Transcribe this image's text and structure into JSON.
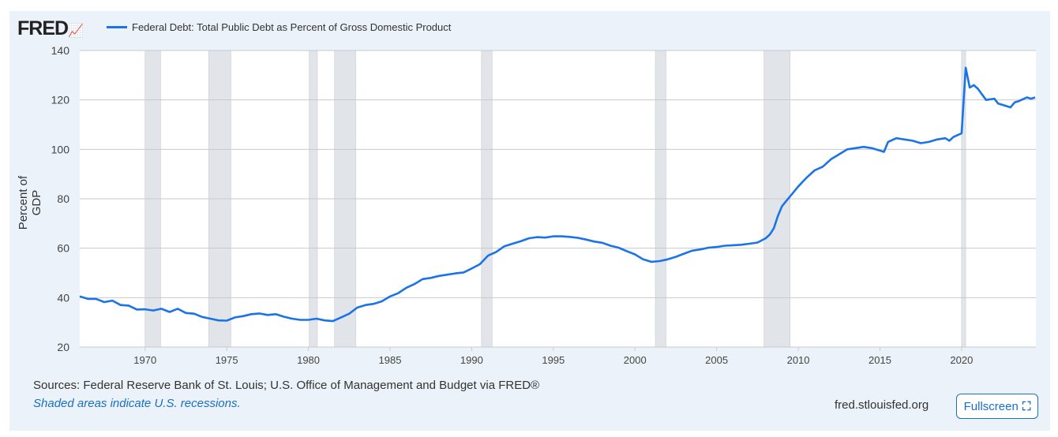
{
  "logo": "FRED",
  "chart_data": {
    "type": "line",
    "title": "Federal Debt: Total Public Debt as Percent of Gross Domestic Product",
    "xlabel": "",
    "ylabel": "Percent of GDP",
    "xlim": [
      1966.0,
      2024.55
    ],
    "ylim": [
      20,
      140
    ],
    "yticks": [
      20,
      40,
      60,
      80,
      100,
      120,
      140
    ],
    "xticks": [
      1970,
      1975,
      1980,
      1985,
      1990,
      1995,
      2000,
      2005,
      2010,
      2015,
      2020
    ],
    "grid": true,
    "legend_position": "top-left",
    "color": "#1a73e8",
    "recessions": [
      [
        1970.0,
        1970.95
      ],
      [
        1973.9,
        1975.25
      ],
      [
        1980.05,
        1980.55
      ],
      [
        1981.6,
        1982.9
      ],
      [
        1990.6,
        1991.25
      ],
      [
        2001.25,
        2001.9
      ],
      [
        2007.9,
        2009.5
      ],
      [
        2020.0,
        2020.25
      ]
    ],
    "series": [
      {
        "name": "Federal Debt: Total Public Debt as Percent of Gross Domestic Product",
        "x": [
          1966,
          1966.5,
          1967,
          1967.5,
          1968,
          1968.5,
          1969,
          1969.5,
          1970,
          1970.5,
          1971,
          1971.5,
          1972,
          1972.5,
          1973,
          1973.5,
          1974,
          1974.5,
          1975,
          1975.5,
          1976,
          1976.5,
          1977,
          1977.5,
          1978,
          1978.5,
          1979,
          1979.5,
          1980,
          1980.5,
          1981,
          1981.5,
          1982,
          1982.5,
          1983,
          1983.5,
          1984,
          1984.5,
          1985,
          1985.5,
          1986,
          1986.5,
          1987,
          1987.5,
          1988,
          1988.5,
          1989,
          1989.5,
          1990,
          1990.5,
          1991,
          1991.5,
          1992,
          1992.5,
          1993,
          1993.5,
          1994,
          1994.5,
          1995,
          1995.5,
          1996,
          1996.5,
          1997,
          1997.5,
          1998,
          1998.5,
          1999,
          1999.5,
          2000,
          2000.5,
          2001,
          2001.5,
          2002,
          2002.5,
          2003,
          2003.5,
          2004,
          2004.5,
          2005,
          2005.5,
          2006,
          2006.5,
          2007,
          2007.5,
          2008,
          2008.25,
          2008.5,
          2008.75,
          2009,
          2009.5,
          2010,
          2010.5,
          2011,
          2011.5,
          2012,
          2012.5,
          2013,
          2013.5,
          2014,
          2014.5,
          2015,
          2015.25,
          2015.5,
          2016,
          2016.5,
          2017,
          2017.5,
          2018,
          2018.5,
          2019,
          2019.25,
          2019.5,
          2020,
          2020.25,
          2020.5,
          2020.75,
          2021,
          2021.5,
          2022,
          2022.25,
          2022.5,
          2023,
          2023.25,
          2023.5,
          2024,
          2024.25,
          2024.5
        ],
        "values": [
          40.5,
          39.5,
          39.5,
          38.2,
          38.8,
          37,
          36.8,
          35.2,
          35.3,
          34.8,
          35.5,
          34.2,
          35.5,
          33.8,
          33.5,
          32.2,
          31.5,
          30.8,
          30.7,
          32,
          32.5,
          33.3,
          33.6,
          33,
          33.3,
          32.3,
          31.5,
          31,
          31,
          31.5,
          30.8,
          30.5,
          32,
          33.5,
          36,
          37,
          37.5,
          38.5,
          40.5,
          41.8,
          44,
          45.5,
          47.5,
          48,
          48.8,
          49.3,
          49.8,
          50.2,
          51.8,
          53.5,
          57,
          58.5,
          60.8,
          61.8,
          62.8,
          64,
          64.5,
          64.3,
          64.8,
          64.8,
          64.6,
          64.2,
          63.5,
          62.7,
          62.2,
          61,
          60.2,
          58.8,
          57.5,
          55.5,
          54.5,
          54.8,
          55.5,
          56.5,
          57.8,
          59,
          59.5,
          60.2,
          60.5,
          61,
          61.2,
          61.4,
          61.8,
          62.3,
          64,
          65.5,
          68,
          73,
          77,
          81,
          85,
          88.5,
          91.5,
          93,
          96,
          98,
          100,
          100.5,
          101,
          100.5,
          99.5,
          99,
          103,
          104.5,
          104,
          103.5,
          102.5,
          103,
          104,
          104.5,
          103.5,
          105,
          106.5,
          133,
          125,
          126,
          124.5,
          120,
          120.5,
          118.5,
          118,
          117,
          119,
          119.5,
          121,
          120.5,
          121
        ]
      }
    ]
  },
  "footer": {
    "sources": "Sources: Federal Reserve Bank of St. Louis; U.S. Office of Management and Budget via FRED®",
    "note": "Shaded areas indicate U.S. recessions.",
    "site": "fred.stlouisfed.org",
    "fullscreen": "Fullscreen"
  }
}
